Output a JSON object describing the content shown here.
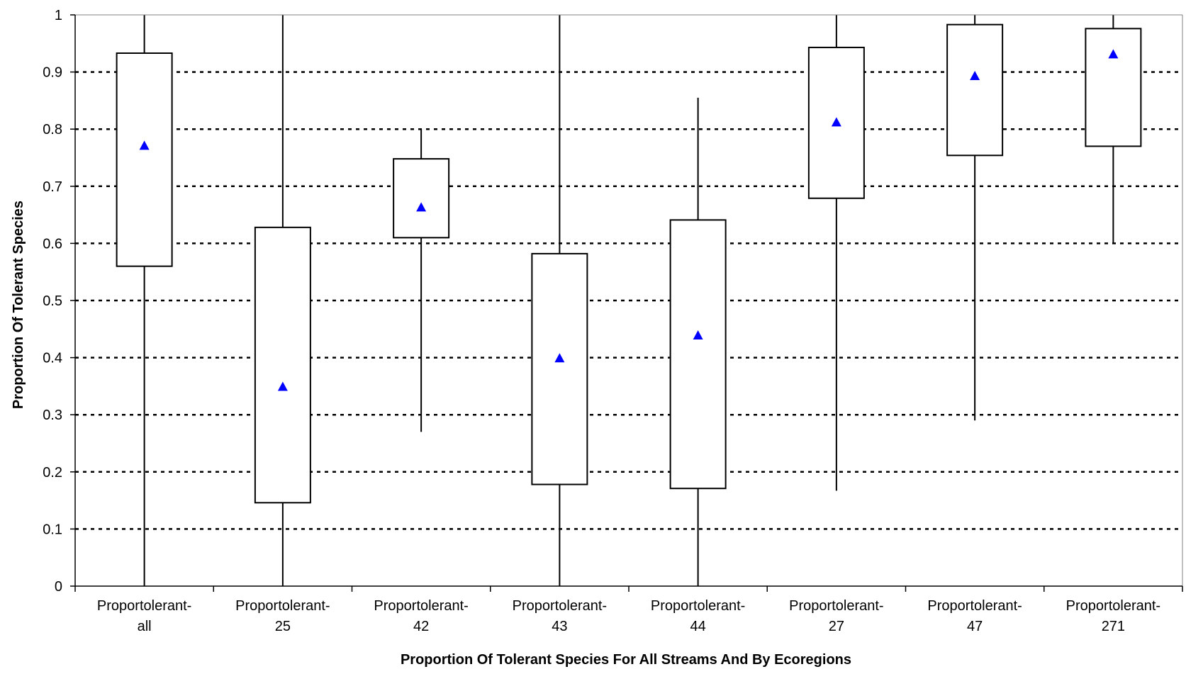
{
  "chart_data": {
    "type": "boxplot",
    "xlabel": "Proportion Of Tolerant Species For All Streams And By Ecoregions",
    "ylabel": "Proportion Of Tolerant Species",
    "ylim": [
      0,
      1
    ],
    "yticks": [
      "0",
      "0.1",
      "0.2",
      "0.3",
      "0.4",
      "0.5",
      "0.6",
      "0.7",
      "0.8",
      "0.9",
      "1"
    ],
    "grid": "horizontal dotted",
    "mean_marker_color": "#0000ff",
    "categories": [
      [
        "Proportolerant-",
        "all"
      ],
      [
        "Proportolerant-",
        "25"
      ],
      [
        "Proportolerant-",
        "42"
      ],
      [
        "Proportolerant-",
        "43"
      ],
      [
        "Proportolerant-",
        "44"
      ],
      [
        "Proportolerant-",
        "27"
      ],
      [
        "Proportolerant-",
        "47"
      ],
      [
        "Proportolerant-",
        "271"
      ]
    ],
    "boxes": [
      {
        "min": 0.0,
        "q1": 0.56,
        "q3": 0.933,
        "max": 1.0,
        "mean": 0.77
      },
      {
        "min": 0.0,
        "q1": 0.146,
        "q3": 0.628,
        "max": 1.0,
        "mean": 0.348
      },
      {
        "min": 0.27,
        "q1": 0.61,
        "q3": 0.748,
        "max": 0.8,
        "mean": 0.662
      },
      {
        "min": 0.0,
        "q1": 0.178,
        "q3": 0.582,
        "max": 1.0,
        "mean": 0.398
      },
      {
        "min": 0.0,
        "q1": 0.171,
        "q3": 0.641,
        "max": 0.855,
        "mean": 0.438
      },
      {
        "min": 0.167,
        "q1": 0.679,
        "q3": 0.943,
        "max": 1.0,
        "mean": 0.811
      },
      {
        "min": 0.29,
        "q1": 0.754,
        "q3": 0.983,
        "max": 1.0,
        "mean": 0.892
      },
      {
        "min": 0.6,
        "q1": 0.77,
        "q3": 0.976,
        "max": 1.0,
        "mean": 0.93
      }
    ]
  }
}
